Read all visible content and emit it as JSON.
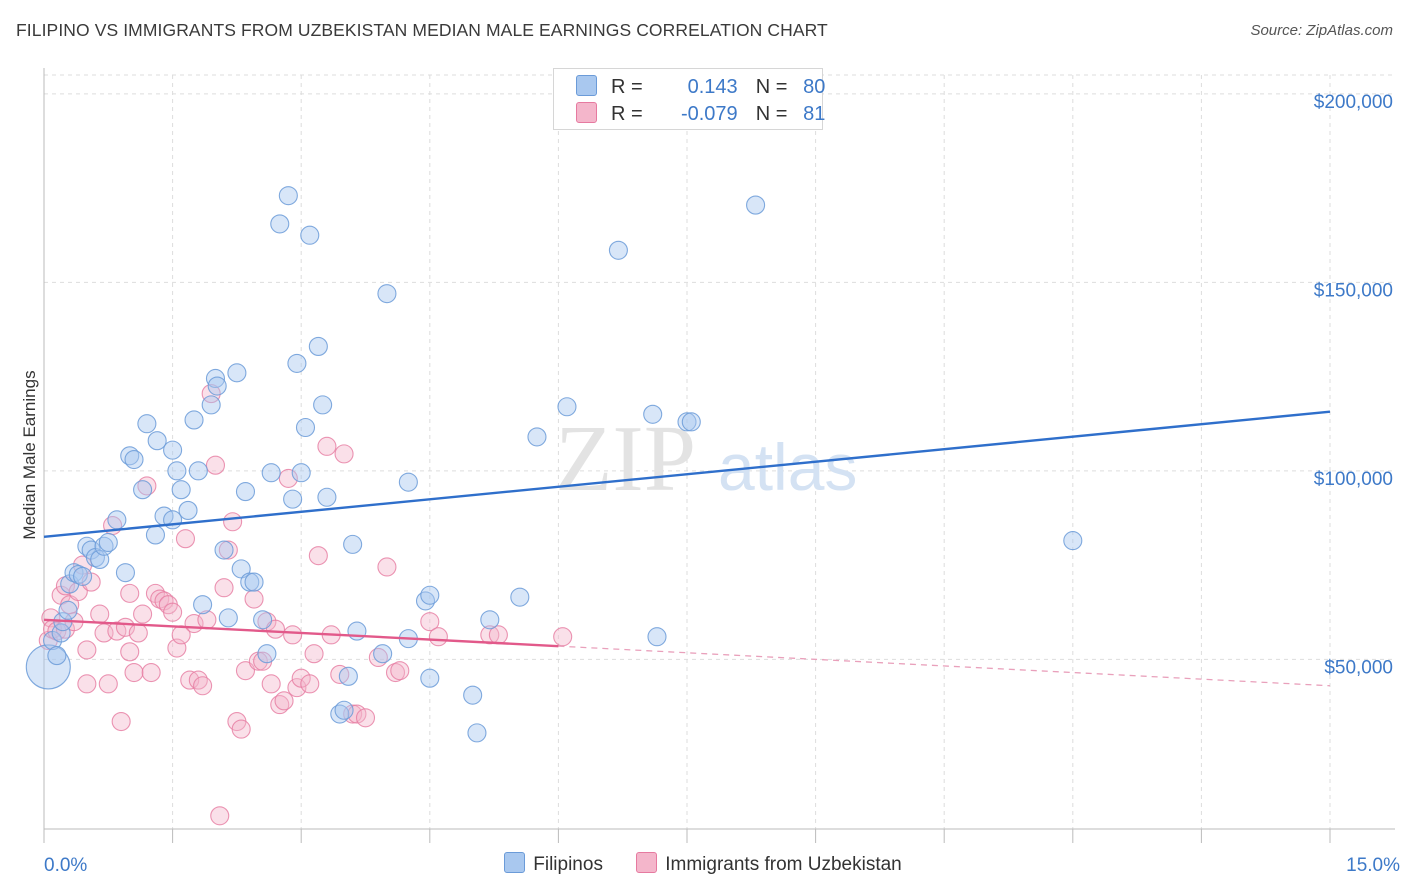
{
  "header": {
    "title": "FILIPINO VS IMMIGRANTS FROM UZBEKISTAN MEDIAN MALE EARNINGS CORRELATION CHART",
    "source": "Source: ZipAtlas.com"
  },
  "legend": {
    "row1": {
      "r_label": "R =",
      "r_value": "0.143",
      "n_label": "N =",
      "n_value": "80"
    },
    "row2": {
      "r_label": "R =",
      "r_value": "-0.079",
      "n_label": "N =",
      "n_value": "81"
    }
  },
  "bottom_legend": {
    "series1": "Filipinos",
    "series2": "Immigrants from Uzbekistan"
  },
  "colors": {
    "blue_fill": "#a9c8ef",
    "blue_stroke": "#6b9bd8",
    "blue_line": "#2f6fcb",
    "pink_fill": "#f4b6cb",
    "pink_stroke": "#e67aa0",
    "pink_line": "#e2598a",
    "accent_text": "#3d79c8"
  },
  "chart_data": {
    "type": "scatter",
    "title": "FILIPINO VS IMMIGRANTS FROM UZBEKISTAN MEDIAN MALE EARNINGS CORRELATION CHART",
    "xlabel": "",
    "ylabel": "Median Male Earnings",
    "x_tick_labels": [
      "0.0%",
      "15.0%"
    ],
    "y_tick_labels": [
      "$50,000",
      "$100,000",
      "$150,000",
      "$200,000"
    ],
    "y_ticks": [
      50000,
      100000,
      150000,
      200000
    ],
    "xlim": [
      0,
      15
    ],
    "ylim": [
      5000,
      205000
    ],
    "grid": true,
    "legend_position": "top-center",
    "watermark": "ZIPatlas",
    "series": [
      {
        "name": "Filipinos",
        "color": "#6b9bd8",
        "R": 0.143,
        "N": 80,
        "trend": {
          "x": [
            0,
            15
          ],
          "y": [
            82500,
            115700
          ]
        },
        "points": [
          [
            0.05,
            48000
          ],
          [
            0.1,
            55000
          ],
          [
            0.15,
            51000
          ],
          [
            0.2,
            57000
          ],
          [
            0.22,
            60000
          ],
          [
            0.28,
            63000
          ],
          [
            0.3,
            70000
          ],
          [
            0.35,
            73000
          ],
          [
            0.4,
            72500
          ],
          [
            0.45,
            72000
          ],
          [
            0.5,
            80000
          ],
          [
            0.55,
            79000
          ],
          [
            0.6,
            77000
          ],
          [
            0.65,
            76500
          ],
          [
            0.7,
            80000
          ],
          [
            0.75,
            81000
          ],
          [
            0.85,
            87000
          ],
          [
            0.95,
            73000
          ],
          [
            1.0,
            104000
          ],
          [
            1.05,
            103000
          ],
          [
            1.15,
            95000
          ],
          [
            1.2,
            112500
          ],
          [
            1.3,
            83000
          ],
          [
            1.32,
            108000
          ],
          [
            1.4,
            88000
          ],
          [
            1.5,
            87000
          ],
          [
            1.5,
            105500
          ],
          [
            1.55,
            100000
          ],
          [
            1.6,
            95000
          ],
          [
            1.68,
            89500
          ],
          [
            1.75,
            113500
          ],
          [
            1.8,
            100000
          ],
          [
            1.85,
            64500
          ],
          [
            1.95,
            117500
          ],
          [
            2.0,
            124500
          ],
          [
            2.02,
            122500
          ],
          [
            2.1,
            79000
          ],
          [
            2.15,
            61000
          ],
          [
            2.25,
            126000
          ],
          [
            2.3,
            74000
          ],
          [
            2.35,
            94500
          ],
          [
            2.4,
            70500
          ],
          [
            2.45,
            70500
          ],
          [
            2.55,
            60500
          ],
          [
            2.6,
            51500
          ],
          [
            2.65,
            99500
          ],
          [
            2.75,
            165500
          ],
          [
            2.85,
            173000
          ],
          [
            2.9,
            92500
          ],
          [
            2.95,
            128500
          ],
          [
            3.0,
            99500
          ],
          [
            3.05,
            111500
          ],
          [
            3.1,
            162500
          ],
          [
            3.2,
            133000
          ],
          [
            3.25,
            117500
          ],
          [
            3.3,
            93000
          ],
          [
            3.45,
            35500
          ],
          [
            3.5,
            36500
          ],
          [
            3.55,
            45500
          ],
          [
            3.6,
            80500
          ],
          [
            3.65,
            57500
          ],
          [
            3.95,
            51500
          ],
          [
            4.0,
            147000
          ],
          [
            4.25,
            97000
          ],
          [
            4.25,
            55500
          ],
          [
            4.45,
            65500
          ],
          [
            4.5,
            67000
          ],
          [
            4.5,
            45000
          ],
          [
            5.0,
            40500
          ],
          [
            5.05,
            30500
          ],
          [
            5.2,
            60500
          ],
          [
            5.55,
            66500
          ],
          [
            5.75,
            109000
          ],
          [
            6.1,
            117000
          ],
          [
            6.7,
            158500
          ],
          [
            7.1,
            115000
          ],
          [
            7.15,
            56000
          ],
          [
            7.5,
            113000
          ],
          [
            7.55,
            113000
          ],
          [
            8.3,
            170500
          ],
          [
            12.0,
            81500
          ]
        ]
      },
      {
        "name": "Immigrants from Uzbekistan",
        "color": "#e67aa0",
        "R": -0.079,
        "N": 81,
        "trend_solid": {
          "x": [
            0,
            6
          ],
          "y": [
            60500,
            53500
          ]
        },
        "trend_dashed": {
          "x": [
            6,
            15
          ],
          "y": [
            53500,
            43000
          ]
        },
        "points": [
          [
            0.05,
            55000
          ],
          [
            0.08,
            61000
          ],
          [
            0.1,
            58000
          ],
          [
            0.15,
            57500
          ],
          [
            0.2,
            67000
          ],
          [
            0.25,
            69500
          ],
          [
            0.25,
            58000
          ],
          [
            0.3,
            64500
          ],
          [
            0.35,
            60000
          ],
          [
            0.4,
            68000
          ],
          [
            0.45,
            75000
          ],
          [
            0.5,
            52500
          ],
          [
            0.5,
            43500
          ],
          [
            0.55,
            70500
          ],
          [
            0.65,
            62000
          ],
          [
            0.7,
            57000
          ],
          [
            0.75,
            43500
          ],
          [
            0.8,
            85500
          ],
          [
            0.85,
            57500
          ],
          [
            0.9,
            33500
          ],
          [
            0.95,
            58500
          ],
          [
            1.0,
            67500
          ],
          [
            1.0,
            52000
          ],
          [
            1.05,
            46500
          ],
          [
            1.1,
            57000
          ],
          [
            1.15,
            62000
          ],
          [
            1.2,
            96000
          ],
          [
            1.25,
            46500
          ],
          [
            1.3,
            67500
          ],
          [
            1.35,
            66000
          ],
          [
            1.4,
            65500
          ],
          [
            1.45,
            64500
          ],
          [
            1.5,
            62500
          ],
          [
            1.55,
            53000
          ],
          [
            1.6,
            56500
          ],
          [
            1.65,
            82000
          ],
          [
            1.7,
            44500
          ],
          [
            1.75,
            59500
          ],
          [
            1.8,
            44500
          ],
          [
            1.85,
            43000
          ],
          [
            1.9,
            60500
          ],
          [
            1.95,
            120500
          ],
          [
            2.0,
            101500
          ],
          [
            2.05,
            8500
          ],
          [
            2.1,
            69000
          ],
          [
            2.15,
            79000
          ],
          [
            2.2,
            86500
          ],
          [
            2.25,
            33500
          ],
          [
            2.3,
            31500
          ],
          [
            2.35,
            47000
          ],
          [
            2.45,
            66000
          ],
          [
            2.5,
            49500
          ],
          [
            2.55,
            49500
          ],
          [
            2.6,
            60000
          ],
          [
            2.65,
            43500
          ],
          [
            2.7,
            58000
          ],
          [
            2.75,
            38000
          ],
          [
            2.8,
            39000
          ],
          [
            2.85,
            98000
          ],
          [
            2.9,
            56500
          ],
          [
            2.95,
            42500
          ],
          [
            3.0,
            45000
          ],
          [
            3.1,
            43500
          ],
          [
            3.15,
            51500
          ],
          [
            3.2,
            77500
          ],
          [
            3.3,
            106500
          ],
          [
            3.35,
            56500
          ],
          [
            3.45,
            46000
          ],
          [
            3.5,
            104500
          ],
          [
            3.6,
            35500
          ],
          [
            3.65,
            35500
          ],
          [
            3.75,
            34500
          ],
          [
            3.9,
            50500
          ],
          [
            4.0,
            74500
          ],
          [
            4.1,
            46500
          ],
          [
            4.15,
            47000
          ],
          [
            4.5,
            60000
          ],
          [
            4.6,
            56000
          ],
          [
            5.2,
            56500
          ],
          [
            5.3,
            56500
          ],
          [
            6.05,
            56000
          ]
        ]
      }
    ]
  }
}
